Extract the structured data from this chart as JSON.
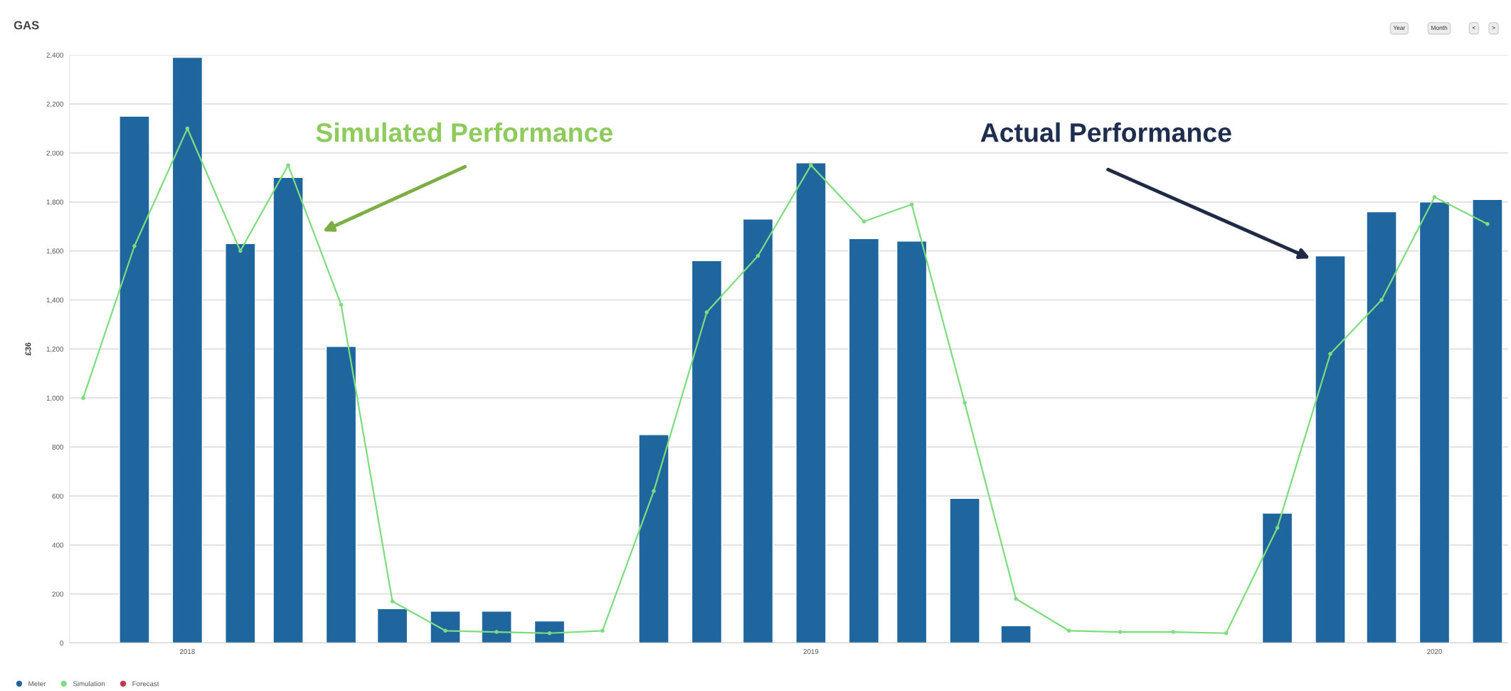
{
  "chart_data": {
    "type": "bar",
    "title": "GAS",
    "ylabel": "£36",
    "x": [
      "2017-11",
      "2017-12",
      "2018-01",
      "2018-02",
      "2018-03",
      "2018-04",
      "2018-05",
      "2018-06",
      "2018-07",
      "2018-08",
      "2018-09",
      "2018-10",
      "2018-11",
      "2018-12",
      "2019-01",
      "2019-02",
      "2019-03",
      "2019-04",
      "2019-05",
      "2019-06",
      "2019-07",
      "2019-08",
      "2019-09",
      "2019-10",
      "2019-11",
      "2019-12",
      "2020-01",
      "2020-02"
    ],
    "series": [
      {
        "name": "Meter",
        "color": "#1f669e",
        "values": [
          null,
          2150,
          2390,
          1630,
          1900,
          1210,
          140,
          130,
          130,
          90,
          null,
          850,
          1560,
          1730,
          1960,
          1650,
          1640,
          590,
          70,
          null,
          null,
          null,
          null,
          530,
          1580,
          1760,
          1800,
          1810
        ]
      },
      {
        "name": "Simulation",
        "type": "line",
        "color": "#7ddc7d",
        "values": [
          1000,
          1620,
          2100,
          1600,
          1950,
          1380,
          170,
          50,
          45,
          40,
          50,
          620,
          1350,
          1580,
          1950,
          1720,
          1790,
          980,
          180,
          50,
          45,
          45,
          40,
          470,
          1180,
          1400,
          1820,
          1710
        ]
      },
      {
        "name": "Forecast",
        "type": "line",
        "color": "#c0394b",
        "values": [
          null,
          null,
          null,
          null,
          null,
          null,
          null,
          null,
          null,
          null,
          null,
          null,
          null,
          null,
          null,
          null,
          null,
          null,
          null,
          null,
          null,
          null,
          null,
          null,
          null,
          null,
          null,
          null
        ]
      }
    ],
    "xlim": [
      "2017-10-24",
      "2020-02-13"
    ],
    "xticks": [
      {
        "value": "2018",
        "label": "2018"
      },
      {
        "value": "2019",
        "label": "2019"
      },
      {
        "value": "2020",
        "label": "2020"
      }
    ],
    "ylim": [
      0,
      2400
    ],
    "yticks": [
      {
        "value": 0,
        "label": "0"
      },
      {
        "value": 200,
        "label": "200"
      },
      {
        "value": 400,
        "label": "400"
      },
      {
        "value": 600,
        "label": "600"
      },
      {
        "value": 800,
        "label": "800"
      },
      {
        "value": 1000,
        "label": "1,000"
      },
      {
        "value": 1200,
        "label": "1,200"
      },
      {
        "value": 1400,
        "label": "1,400"
      },
      {
        "value": 1600,
        "label": "1,600"
      },
      {
        "value": 1800,
        "label": "1,800"
      },
      {
        "value": 2000,
        "label": "2,000"
      },
      {
        "value": 2200,
        "label": "2,200"
      },
      {
        "value": 2400,
        "label": "2,400"
      }
    ],
    "annotations": [
      "Simulated Performance",
      "Actual Performance",
      "Year",
      "Month",
      "<",
      ">"
    ],
    "grid": "y",
    "legend": "bottom left",
    "marker": "circle",
    "line_style": "solid"
  }
}
